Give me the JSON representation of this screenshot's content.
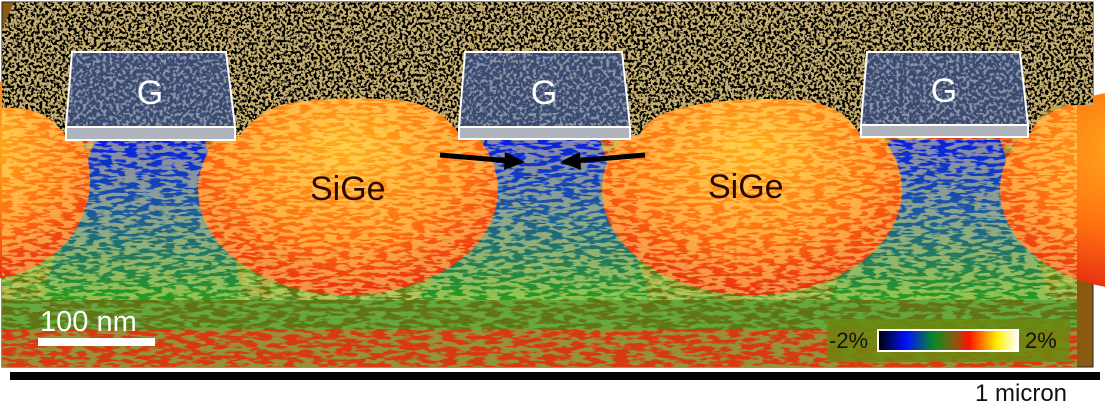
{
  "labels": {
    "gates": [
      "G",
      "G",
      "G"
    ],
    "regions": [
      "SiGe",
      "SiGe"
    ],
    "scale_bar": "100 nm",
    "length_bar": "1 micron"
  },
  "colorbar": {
    "min_label": "-2%",
    "max_label": "2%",
    "colors": [
      "#000000",
      "#0010ff",
      "#0a8a20",
      "#8a5a10",
      "#ff1000",
      "#ffee00",
      "#ffffff"
    ]
  },
  "colors": {
    "background": "#8a5a10",
    "sige": "#ff5a10",
    "channel": "#1030d0",
    "substrate_green": "#2a9a20",
    "substrate_red": "#e83010"
  }
}
